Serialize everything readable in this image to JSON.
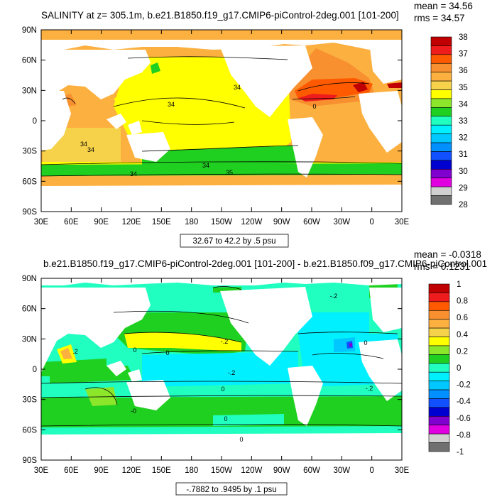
{
  "chart_data": [
    {
      "type": "heatmap",
      "title": "SALINITY at z= 305.1m, b.e21.B1850.f19_g17.CMIP6-piControl-2deg.001 [101-200]",
      "stats": {
        "mean": "mean = 34.56",
        "rms": "rms = 34.57"
      },
      "range_label": "32.67 to 42.2 by .5 psu",
      "x_ticks": [
        "30E",
        "60E",
        "90E",
        "120E",
        "150E",
        "180",
        "150W",
        "120W",
        "90W",
        "60W",
        "30W",
        "0",
        "30E"
      ],
      "y_ticks": [
        "90N",
        "60N",
        "30N",
        "0",
        "30S",
        "60S",
        "90S"
      ],
      "colorbar": {
        "labels": [
          "38",
          "37",
          "36",
          "35",
          "34",
          "33",
          "32",
          "31",
          "30",
          "29",
          "28"
        ],
        "colors": [
          "#c00000",
          "#ee1c1c",
          "#ff5a00",
          "#f89030",
          "#fcb040",
          "#f6d24a",
          "#ffff00",
          "#8ce62a",
          "#20d020",
          "#20ffc0",
          "#00f0ff",
          "#00c8ff",
          "#0090ff",
          "#1050ff",
          "#0000d0",
          "#8000d0",
          "#e000e0",
          "#d0d0d0",
          "#707070"
        ]
      },
      "contour_labels": [
        "34",
        "34",
        "34",
        "34",
        "34",
        "34",
        "35",
        "0"
      ]
    },
    {
      "type": "heatmap",
      "title": "b.e21.B1850.f19_g17.CMIP6-piControl-2deg.001 [101-200] - b.e21.B1850.f09_g17.CMIP6-piControl.001",
      "stats": {
        "mean": "mean = -0.0318",
        "rms": "rms = 0.1231"
      },
      "range_label": "-.7882 to .9495 by .1 psu",
      "x_ticks": [
        "30E",
        "60E",
        "90E",
        "120E",
        "150E",
        "180",
        "150W",
        "120W",
        "90W",
        "60W",
        "30W",
        "0",
        "30E"
      ],
      "y_ticks": [
        "90N",
        "60N",
        "30N",
        "0",
        "30S",
        "60S",
        "90S"
      ],
      "colorbar": {
        "labels": [
          "1",
          "0.8",
          "0.6",
          "0.4",
          "0.2",
          "0",
          "-0.2",
          "-0.4",
          "-0.6",
          "-0.8",
          "-1"
        ],
        "colors": [
          "#c00000",
          "#ee1c1c",
          "#ff5a00",
          "#f89030",
          "#fcb040",
          "#f6d24a",
          "#ffff00",
          "#8ce62a",
          "#20d020",
          "#20ffc0",
          "#00f0ff",
          "#00c8ff",
          "#0090ff",
          "#1050ff",
          "#0000d0",
          "#8000d0",
          "#e000e0",
          "#d0d0d0",
          "#707070"
        ]
      },
      "contour_labels": [
        "-.2",
        "0",
        "-.2",
        ".2",
        "0",
        "-.2",
        "-0",
        "0",
        "0",
        "0",
        "-.2",
        "0"
      ]
    }
  ]
}
